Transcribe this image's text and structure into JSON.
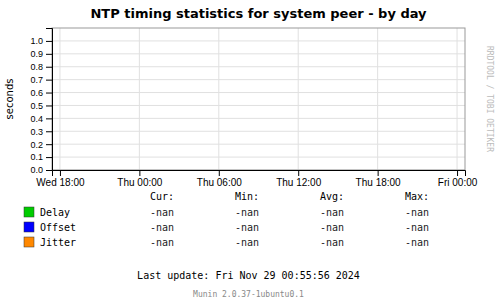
{
  "chart_data": {
    "type": "line",
    "title": "NTP timing statistics for system peer - by day",
    "y_label": "seconds",
    "categories": [
      "Wed 18:00",
      "Thu 00:00",
      "Thu 06:00",
      "Thu 12:00",
      "Thu 18:00",
      "Fri 00:00"
    ],
    "series": [
      {
        "name": "Delay",
        "color": "#00cc00",
        "values": [
          null,
          null,
          null,
          null,
          null,
          null
        ]
      },
      {
        "name": "Offset",
        "color": "#0000ff",
        "values": [
          null,
          null,
          null,
          null,
          null,
          null
        ]
      },
      {
        "name": "Jitter",
        "color": "#ff8800",
        "values": [
          null,
          null,
          null,
          null,
          null,
          null
        ]
      }
    ],
    "ylim": [
      0.0,
      1.1
    ],
    "yticks": [
      {
        "value": 0.0,
        "label": "0.0"
      },
      0.1,
      0.2,
      0.3,
      0.4,
      0.5,
      0.6,
      0.7,
      0.8,
      0.9,
      {
        "value": 1.0,
        "label": "1.0"
      }
    ],
    "grid": true,
    "table": {
      "header": [
        "Cur:",
        "Min:",
        "Avg:",
        "Max:"
      ],
      "rows": [
        [
          "-nan",
          "-nan",
          "-nan",
          "-nan"
        ],
        [
          "-nan",
          "-nan",
          "-nan",
          "-nan"
        ],
        [
          "-nan",
          "-nan",
          "-nan",
          "-nan"
        ]
      ]
    },
    "annotations": [
      "RRDTOOL / TOBI OETIKER",
      "Last update: Fri Nov 29 00:55:56 2024",
      "Munin 2.0.37-1ubuntu0.1"
    ]
  }
}
